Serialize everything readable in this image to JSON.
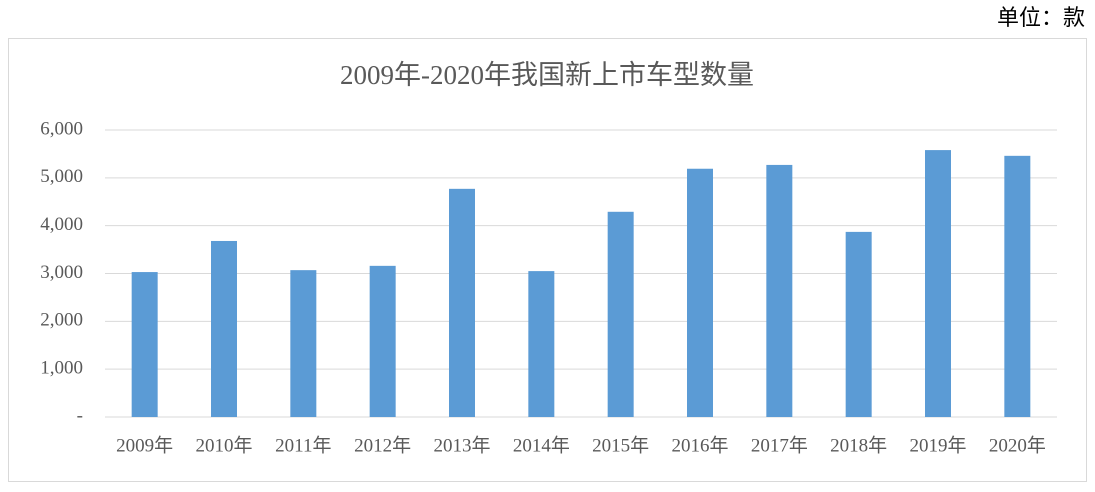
{
  "chart_data": {
    "type": "bar",
    "title": "2009年-2020年我国新上市车型数量",
    "unit_label": "单位：款",
    "categories": [
      "2009年",
      "2010年",
      "2011年",
      "2012年",
      "2013年",
      "2014年",
      "2015年",
      "2016年",
      "2017年",
      "2018年",
      "2019年",
      "2020年"
    ],
    "values": [
      3030,
      3680,
      3070,
      3160,
      4770,
      3050,
      4290,
      5190,
      5270,
      3870,
      5580,
      5460
    ],
    "color": "#5b9bd5",
    "ylim": [
      0,
      6000
    ],
    "yticks": [
      {
        "value": 0,
        "label": "-"
      },
      {
        "value": 1000,
        "label": "1,000"
      },
      {
        "value": 2000,
        "label": "2,000"
      },
      {
        "value": 3000,
        "label": "3,000"
      },
      {
        "value": 4000,
        "label": "4,000"
      },
      {
        "value": 5000,
        "label": "5,000"
      },
      {
        "value": 6000,
        "label": "6,000"
      }
    ],
    "grid": true
  }
}
